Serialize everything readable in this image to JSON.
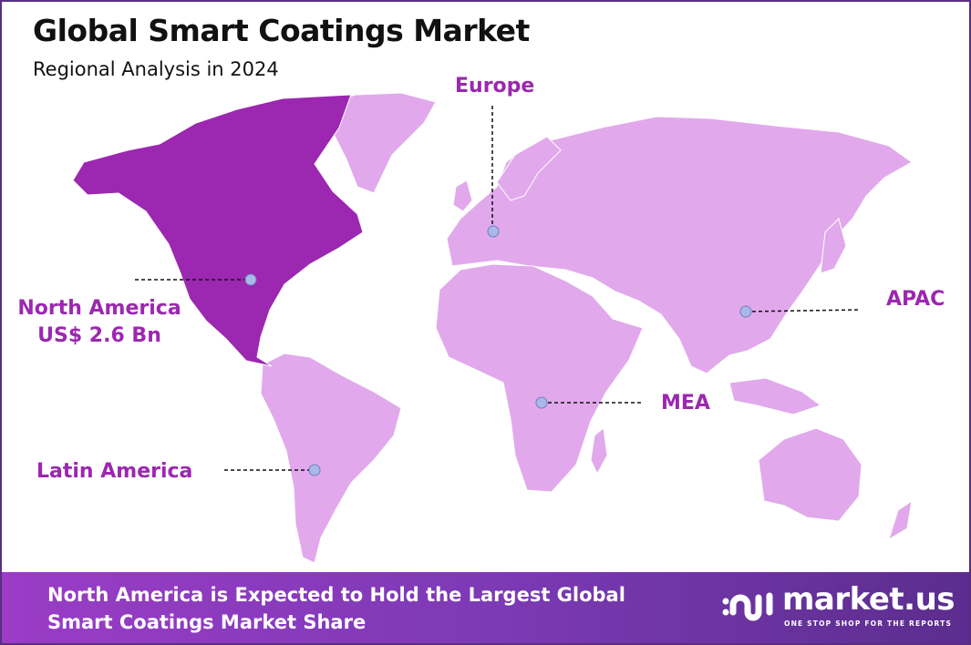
{
  "header": {
    "title": "Global Smart Coatings Market",
    "subtitle": "Regional Analysis in 2024"
  },
  "colors": {
    "highlight_region": "#9c27b0",
    "other_regions": "#e1a9ec",
    "label": "#9c27b0",
    "marker": "#a9b8e8",
    "border": "#5a2d82"
  },
  "regions": [
    {
      "name": "North America",
      "value": "US$ 2.6 Bn",
      "highlighted": true
    },
    {
      "name": "Europe"
    },
    {
      "name": "APAC"
    },
    {
      "name": "MEA"
    },
    {
      "name": "Latin America"
    }
  ],
  "footer": {
    "line1": "North America is Expected to Hold the Largest Global",
    "line2": "Smart Coatings Market Share",
    "logo_name": "market.us",
    "logo_tagline": "ONE STOP SHOP FOR THE REPORTS"
  }
}
